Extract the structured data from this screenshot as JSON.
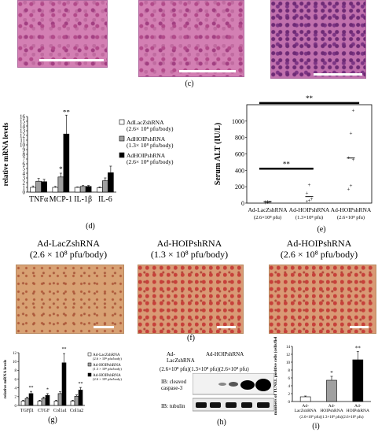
{
  "panel_labels": {
    "c": "(c)",
    "d": "(d)",
    "e": "(e)",
    "f": "(f)",
    "g": "(g)",
    "h": "(h)",
    "i": "(i)"
  },
  "f_titles": [
    {
      "name": "Ad-LacZshRNA",
      "dose": "(2.6 × 10⁸ pfu/body)"
    },
    {
      "name": "Ad-HOIPshRNA",
      "dose": "(1.3 × 10⁸ pfu/body)"
    },
    {
      "name": "Ad-HOIPshRNA",
      "dose": "(2.6 × 10⁸ pfu/body)"
    }
  ],
  "h_blot": {
    "header_a": "Ad-LacZshRNA",
    "header_b": "Ad-HOIPshRNA",
    "doses": "(2.6×10⁸ pfu)(1.3×10⁸ pfu)(2.6×10⁸ pfu)",
    "ib1": "IB: cleaved caspase-3",
    "ib2": "IB: tubulin"
  },
  "colors": {
    "white": "#ffffff",
    "gray": "#a0a0a0",
    "black": "#000000"
  },
  "chart_data": [
    {
      "id": "d",
      "type": "bar",
      "ylabel": "relative mRNA levels",
      "ylim": [
        0,
        16
      ],
      "yticks": [
        "0",
        "1",
        "2",
        "3",
        "4",
        "5",
        "6",
        "7",
        "8",
        "9",
        "10",
        "11",
        "12",
        "13",
        "14",
        "15",
        "16"
      ],
      "categories": [
        "TNFα",
        "MCP-1",
        "IL-1β",
        "IL-6"
      ],
      "series": [
        {
          "name": "AdLacZshRNA (2.6× 10⁸ pfu/body)",
          "color": "#ffffff",
          "values": [
            1.0,
            1.0,
            1.0,
            0.9
          ],
          "err": [
            0.3,
            0.2,
            0.1,
            0.2
          ]
        },
        {
          "name": "AdHOIPshRNA (1.3× 10⁸ pfu/body)",
          "color": "#a0a0a0",
          "values": [
            2.3,
            3.2,
            1.2,
            2.4
          ],
          "err": [
            0.6,
            0.8,
            0.2,
            0.6
          ]
        },
        {
          "name": "AdHOIPshRNA (2.6× 10⁸ pfu/body)",
          "color": "#000000",
          "values": [
            2.2,
            12.3,
            1.2,
            4.1
          ],
          "err": [
            0.5,
            4.0,
            0.2,
            1.4
          ]
        }
      ],
      "annotations": [
        "*",
        "**"
      ]
    },
    {
      "id": "e",
      "type": "scatter",
      "ylabel": "Serum ALT (IU/L)",
      "ylim": [
        0,
        1200
      ],
      "yticks": [
        "0",
        "200",
        "400",
        "600",
        "800",
        "1000"
      ],
      "categories": [
        "Ad-LacZshRNA (2.6×10⁸ pfu)",
        "Ad-HOIPshRNA (1.3×10⁸ pfu)",
        "Ad-HOIPshRNA (2.6×10⁸ pfu)"
      ],
      "points": [
        [
          10,
          15,
          20,
          25,
          30
        ],
        [
          30,
          40,
          60,
          130,
          230
        ],
        [
          180,
          220,
          540,
          560,
          860,
          1140
        ]
      ],
      "means": [
        18,
        80,
        550
      ],
      "annotations": [
        "**",
        "**"
      ]
    },
    {
      "id": "g",
      "type": "bar",
      "ylabel": "relative mRNA levels",
      "ylim": [
        0,
        12
      ],
      "yticks": [
        "0",
        "2",
        "4",
        "6",
        "8",
        "10",
        "12"
      ],
      "categories": [
        "TGFβ1",
        "CTGF",
        "Col1a1",
        "Col1a2"
      ],
      "series": [
        {
          "name": "Ad-LacZshRNA (2.6 × 10⁸ pfu/body)",
          "color": "#ffffff",
          "values": [
            1.0,
            1.0,
            1.0,
            1.0
          ],
          "err": [
            0.2,
            0.2,
            0.2,
            0.2
          ]
        },
        {
          "name": "Ad-HOIPshRNA (1.3 × 10⁸ pfu/body)",
          "color": "#a0a0a0",
          "values": [
            1.6,
            1.6,
            2.7,
            2.1
          ],
          "err": [
            0.3,
            0.3,
            0.4,
            0.3
          ]
        },
        {
          "name": "Ad-HOIPshRNA (2.6 × 10⁸ pfu/body)",
          "color": "#000000",
          "values": [
            2.7,
            2.3,
            9.7,
            3.5
          ],
          "err": [
            0.5,
            0.4,
            2.1,
            0.6
          ]
        }
      ],
      "annotations": [
        "**",
        "*",
        "**",
        "**"
      ]
    },
    {
      "id": "i",
      "type": "bar",
      "ylabel": "numbers of TUNEL positive cells (cells/field)",
      "ylim": [
        0,
        14
      ],
      "yticks": [
        "0",
        "2",
        "4",
        "6",
        "8",
        "10",
        "12",
        "14"
      ],
      "categories": [
        "Ad-LacZshRNA",
        "Ad-HOIPshRNA",
        "Ad-HOIPshRNA"
      ],
      "doses": "(2.6×10⁸ pfu)(1.3×10⁸ pfu)(2.6×10⁸ pfu)",
      "series": [
        {
          "name": "",
          "values": [
            1.2,
            5.4,
            10.6
          ],
          "err": [
            0.2,
            1.0,
            2.1
          ],
          "colors": [
            "#ffffff",
            "#a0a0a0",
            "#000000"
          ]
        }
      ],
      "annotations": [
        "*",
        "**"
      ]
    }
  ]
}
